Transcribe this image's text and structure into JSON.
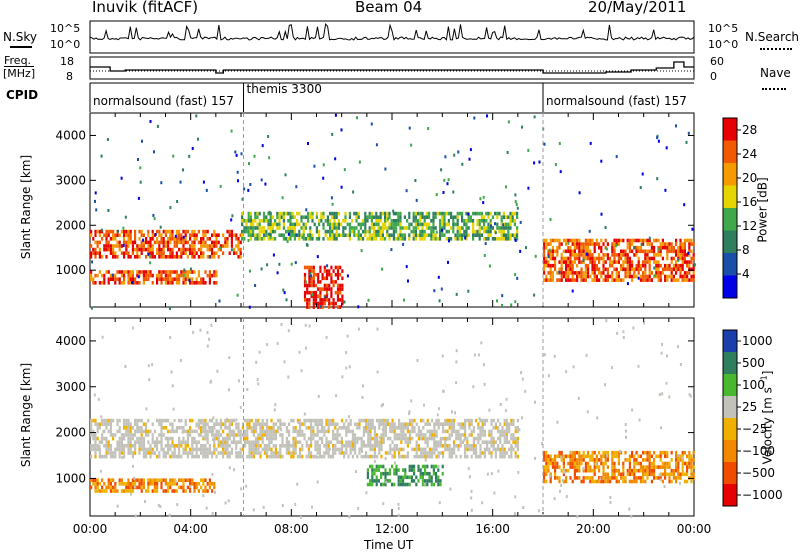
{
  "header": {
    "station": "Inuvik (fitACF)",
    "beam": "Beam 04",
    "date": "20/May/2011"
  },
  "strip_labels": {
    "nsky": "N.Sky",
    "nsearch": "N.Search",
    "freq_line1": "Freq.",
    "freq_line2": "[MHz]",
    "nave": "Nave",
    "cpid": "CPID"
  },
  "strip_ticks": {
    "noise_left_top": "10^5",
    "noise_left_bottom": "10^0",
    "noise_right_top": "10^5",
    "noise_right_bottom": "10^0",
    "freq_left_top": "18",
    "freq_left_bottom": "8",
    "nave_right_top": "60",
    "nave_right_bottom": "0"
  },
  "cpid_segments": [
    {
      "label": "normalsound (fast) 157",
      "start_hour": 0.0,
      "end_hour": 6.1
    },
    {
      "label": "themis 3300",
      "start_hour": 6.1,
      "end_hour": 18.0
    },
    {
      "label": "normalsound (fast) 157",
      "start_hour": 18.0,
      "end_hour": 24.0
    }
  ],
  "colors": {
    "power": [
      "#0000e6",
      "#1a4fa8",
      "#2f7f5e",
      "#3fa84a",
      "#e6d400",
      "#f59a00",
      "#f25a00",
      "#e60000"
    ],
    "velocity": [
      "#1a3faa",
      "#2f7f5e",
      "#48b830",
      "#c2c2bb",
      "#f0b000",
      "#f28800",
      "#f04c00",
      "#e60000"
    ]
  },
  "chart_data": [
    {
      "type": "heatmap",
      "name": "power-panel",
      "ylabel": "Slant Range [km]",
      "xlabel": "",
      "xlim": [
        0,
        24
      ],
      "ylim": [
        180,
        4500
      ],
      "yticks": [
        "1000",
        "2000",
        "3000",
        "4000"
      ],
      "colorbar": {
        "label": "Power [dB]",
        "ticks": [
          "4",
          "8",
          "12",
          "16",
          "20",
          "24",
          "28"
        ],
        "range": [
          0,
          30
        ]
      },
      "echo_bands": [
        {
          "range_km": [
            1300,
            1900
          ],
          "hours": [
            0,
            6
          ],
          "power_db": 26
        },
        {
          "range_km": [
            1700,
            2300
          ],
          "hours": [
            6,
            17
          ],
          "power_db": 12
        },
        {
          "range_km": [
            700,
            1000
          ],
          "hours": [
            0,
            5
          ],
          "power_db": 24
        },
        {
          "range_km": [
            200,
            1100
          ],
          "hours": [
            8.5,
            10
          ],
          "power_db": 28
        },
        {
          "range_km": [
            800,
            1700
          ],
          "hours": [
            18,
            24
          ],
          "power_db": 26
        }
      ]
    },
    {
      "type": "heatmap",
      "name": "velocity-panel",
      "ylabel": "Slant Range [km]",
      "xlabel": "Time UT",
      "xlim": [
        0,
        24
      ],
      "ylim": [
        180,
        4500
      ],
      "xticks": [
        "00:00",
        "04:00",
        "08:00",
        "12:00",
        "16:00",
        "20:00",
        "00:00"
      ],
      "yticks": [
        "1000",
        "2000",
        "3000",
        "4000"
      ],
      "colorbar": {
        "label": "Velocity [m s^-1]",
        "ticks": [
          "1000",
          "500",
          "100",
          "25",
          "−25",
          "−100",
          "−500",
          "−1000"
        ]
      },
      "echo_bands": [
        {
          "range_km": [
            1500,
            2300
          ],
          "hours": [
            0,
            17
          ],
          "velocity_ms": 0
        },
        {
          "range_km": [
            700,
            1000
          ],
          "hours": [
            0,
            5
          ],
          "velocity_ms": -150
        },
        {
          "range_km": [
            900,
            1600
          ],
          "hours": [
            18,
            24
          ],
          "velocity_ms": -150
        },
        {
          "range_km": [
            900,
            1300
          ],
          "hours": [
            11,
            14
          ],
          "velocity_ms": 150
        }
      ]
    }
  ]
}
